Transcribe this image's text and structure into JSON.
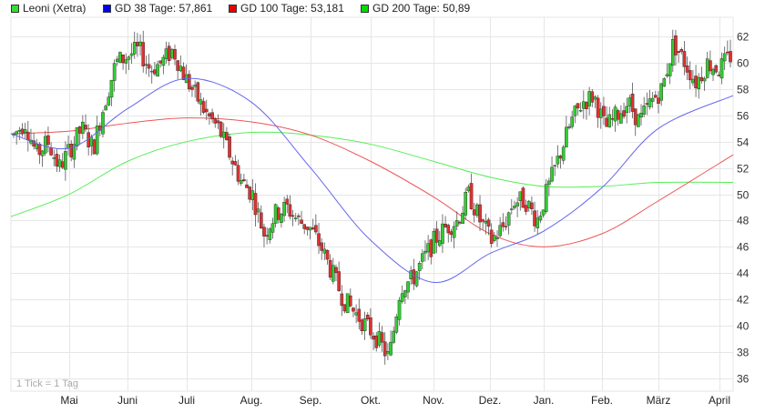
{
  "legend": [
    {
      "label": "Leoni (Xetra)",
      "color": "#33dd33"
    },
    {
      "label": "GD 38 Tage: 57,861",
      "color": "#0000ee"
    },
    {
      "label": "GD 100 Tage: 53,181",
      "color": "#ee0000"
    },
    {
      "label": "GD 200 Tage: 50,89",
      "color": "#00dd00"
    }
  ],
  "footnote": "1 Tick = 1 Tag",
  "colors": {
    "up": "#33cc33",
    "down": "#dd3333",
    "gd38": "#6666ee",
    "gd100": "#ee5555",
    "gd200": "#55ee55",
    "grid": "#e6e6e6"
  },
  "chart_data": {
    "type": "candlestick",
    "title": "Leoni (Xetra)",
    "xlabel": "",
    "ylabel": "",
    "ylim": [
      35,
      63
    ],
    "yticks": [
      36,
      38,
      40,
      42,
      44,
      46,
      48,
      50,
      52,
      54,
      56,
      58,
      60,
      62
    ],
    "xticks": [
      "Mai",
      "Juni",
      "Juli",
      "Aug.",
      "Sep.",
      "Okt.",
      "Nov.",
      "Dez.",
      "Jan.",
      "Feb.",
      "März",
      "April"
    ],
    "grid": true,
    "legend_position": "top",
    "series": [
      {
        "name": "Leoni (Xetra)",
        "type": "candlestick",
        "approx_close_by_month": {
          "Apr": 54.5,
          "Mai": 53.5,
          "Juni": 60.0,
          "Juli": 59.5,
          "Aug.": 51.0,
          "Sep.": 48.5,
          "Okt.": 41.0,
          "Nov.": 45.0,
          "Dez.": 47.5,
          "Jan.": 49.5,
          "Feb.": 57.5,
          "März": 59.5,
          "April": 60.5
        },
        "low": 37.3,
        "high": 61.8
      },
      {
        "name": "GD 38 Tage",
        "value_last": 57.861,
        "x": [
          "Apr",
          "Mai",
          "Juni",
          "Juli",
          "Aug.",
          "Sep.",
          "Okt.",
          "Nov.",
          "Dez.",
          "Jan.",
          "Feb.",
          "März",
          "April"
        ],
        "values": [
          54.6,
          53.5,
          56.5,
          58.8,
          57.0,
          52.0,
          46.5,
          43.3,
          45.5,
          47.2,
          50.5,
          55.0,
          57.5
        ]
      },
      {
        "name": "GD 100 Tage",
        "value_last": 53.181,
        "x": [
          "Apr",
          "Mai",
          "Juni",
          "Juli",
          "Aug.",
          "Sep.",
          "Okt.",
          "Nov.",
          "Dez.",
          "Jan.",
          "Feb.",
          "März",
          "April"
        ],
        "values": [
          54.6,
          54.8,
          55.4,
          55.8,
          55.5,
          54.5,
          52.5,
          49.8,
          47.0,
          46.0,
          47.0,
          49.5,
          53.0
        ]
      },
      {
        "name": "GD 200 Tage",
        "value_last": 50.89,
        "x": [
          "Apr",
          "Mai",
          "Juni",
          "Juli",
          "Aug.",
          "Sep.",
          "Okt.",
          "Nov.",
          "Dez.",
          "Jan.",
          "Feb.",
          "März",
          "April"
        ],
        "values": [
          48.3,
          50.0,
          52.5,
          54.0,
          54.7,
          54.5,
          53.8,
          52.5,
          51.3,
          50.6,
          50.6,
          50.9,
          50.9
        ]
      }
    ]
  }
}
